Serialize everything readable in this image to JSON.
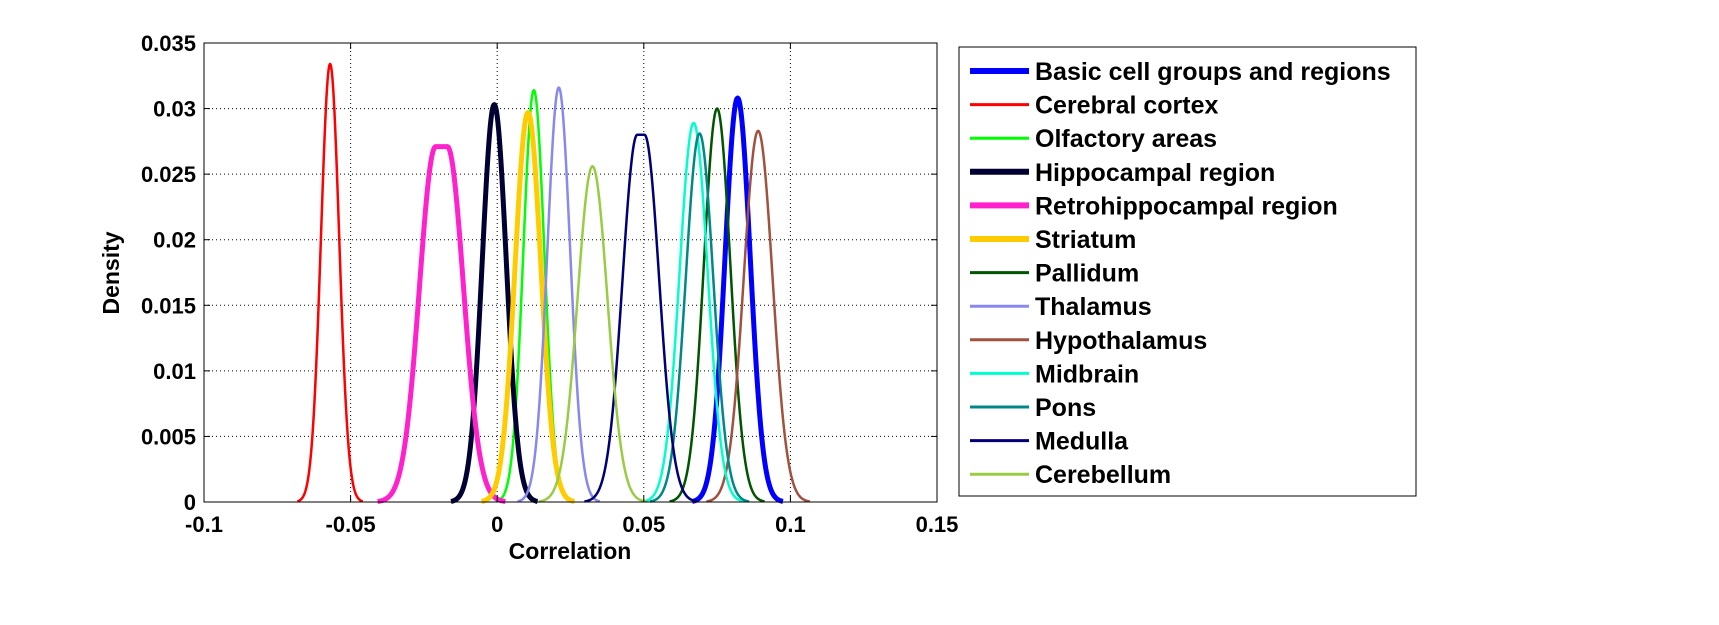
{
  "chart_data": {
    "type": "line",
    "title": "",
    "xlabel": "Correlation",
    "ylabel": "Density",
    "xlim": [
      -0.1,
      0.15
    ],
    "ylim": [
      0,
      0.035
    ],
    "xticks": [
      -0.1,
      -0.05,
      0,
      0.05,
      0.1,
      0.15
    ],
    "xtick_labels": [
      "-0.1",
      "-0.05",
      "0",
      "0.05",
      "0.1",
      "0.15"
    ],
    "yticks": [
      0,
      0.005,
      0.01,
      0.015,
      0.02,
      0.025,
      0.03,
      0.035
    ],
    "ytick_labels": [
      "0",
      "0.005",
      "0.01",
      "0.015",
      "0.02",
      "0.025",
      "0.03",
      "0.035"
    ],
    "grid": true,
    "legend_position": "outside-right",
    "series": [
      {
        "name": "Basic cell groups and regions",
        "color": "#0000ff",
        "thick": true,
        "peak_x": 0.082,
        "peak_y": 0.0308,
        "sd": 0.0043,
        "flat": 0
      },
      {
        "name": "Cerebral cortex",
        "color": "#ff0000",
        "thick": false,
        "peak_x": -0.057,
        "peak_y": 0.0334,
        "sd": 0.0031,
        "flat": 0
      },
      {
        "name": "Olfactory areas",
        "color": "#00ff00",
        "thick": false,
        "peak_x": 0.0125,
        "peak_y": 0.0314,
        "sd": 0.0036,
        "flat": 0
      },
      {
        "name": "Hippocampal region",
        "color": "#000033",
        "thick": true,
        "peak_x": -0.001,
        "peak_y": 0.0303,
        "sd": 0.0041,
        "flat": 0
      },
      {
        "name": "Retrohippocampal region",
        "color": "#ff22cc",
        "thick": true,
        "peak_x": -0.019,
        "peak_y": 0.0271,
        "sd": 0.0055,
        "flat": 0.004
      },
      {
        "name": "Striatum",
        "color": "#ffcc00",
        "thick": true,
        "peak_x": 0.0105,
        "peak_y": 0.0297,
        "sd": 0.0044,
        "flat": 0
      },
      {
        "name": "Pallidum",
        "color": "#005500",
        "thick": false,
        "peak_x": 0.075,
        "peak_y": 0.03,
        "sd": 0.0045,
        "flat": 0
      },
      {
        "name": "Thalamus",
        "color": "#8888ee",
        "thick": false,
        "peak_x": 0.021,
        "peak_y": 0.0316,
        "sd": 0.0039,
        "flat": 0
      },
      {
        "name": "Hypothalamus",
        "color": "#a0523f",
        "thick": false,
        "peak_x": 0.089,
        "peak_y": 0.0283,
        "sd": 0.0049,
        "flat": 0
      },
      {
        "name": "Midbrain",
        "color": "#00ffcc",
        "thick": false,
        "peak_x": 0.067,
        "peak_y": 0.0289,
        "sd": 0.0048,
        "flat": 0
      },
      {
        "name": "Pons",
        "color": "#008888",
        "thick": false,
        "peak_x": 0.069,
        "peak_y": 0.0281,
        "sd": 0.0047,
        "flat": 0
      },
      {
        "name": "Medulla",
        "color": "#000077",
        "thick": false,
        "peak_x": 0.049,
        "peak_y": 0.028,
        "sd": 0.005,
        "flat": 0.0025
      },
      {
        "name": "Cerebellum",
        "color": "#99cc44",
        "thick": false,
        "peak_x": 0.0325,
        "peak_y": 0.0256,
        "sd": 0.0051,
        "flat": 0
      }
    ]
  }
}
